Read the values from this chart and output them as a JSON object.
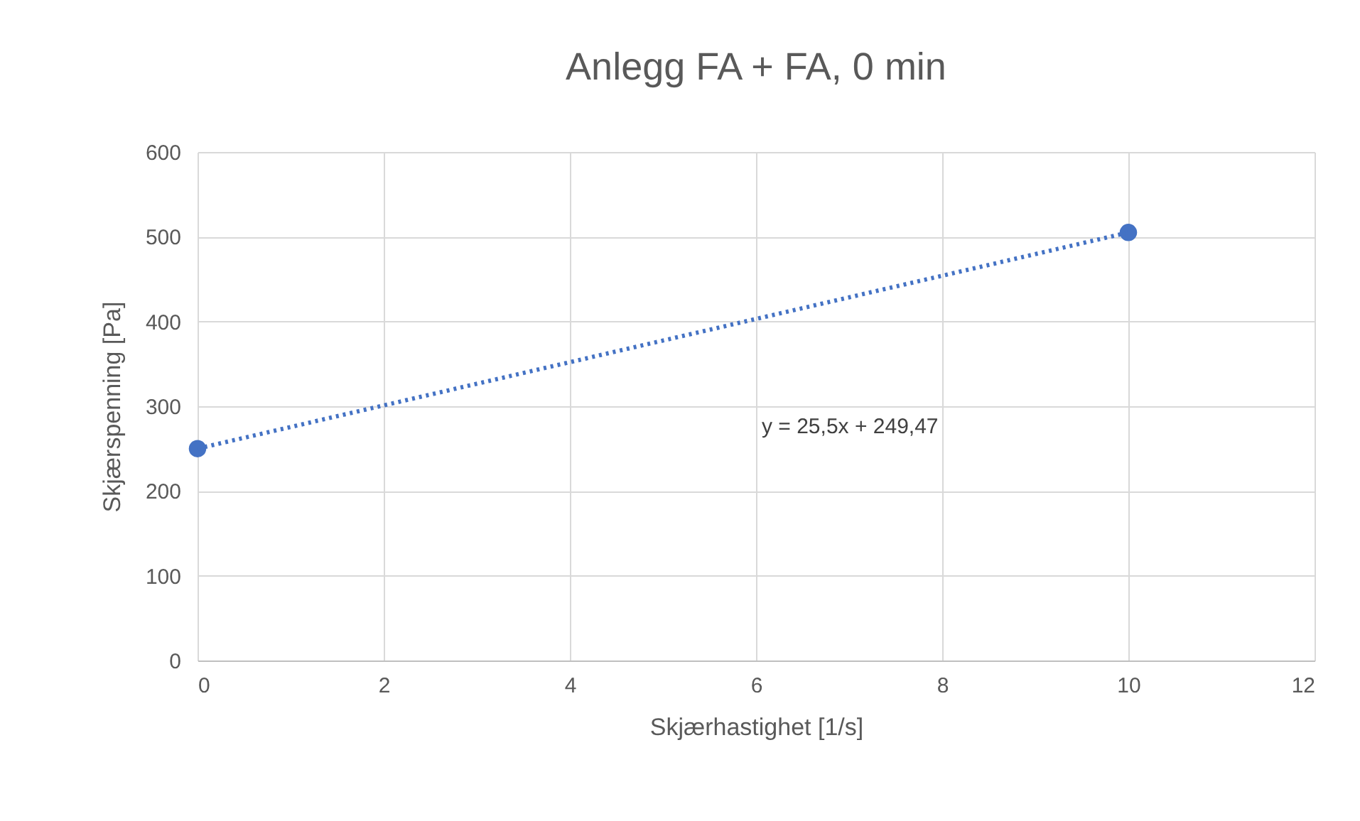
{
  "chart_data": {
    "type": "scatter",
    "title": "Anlegg FA + FA, 0 min",
    "xlabel": "Skjærhastighet [1/s]",
    "ylabel": "Skjærspenning [Pa]",
    "x": [
      0,
      10
    ],
    "series": [
      {
        "color": "#4472c4",
        "values": [
          250,
          505
        ],
        "marker": "circle"
      },
      {
        "type": "line",
        "color": "#4472c4",
        "values": [
          250,
          505
        ],
        "line_style": "dotted",
        "marker": "none"
      }
    ],
    "xlim": [
      0,
      12
    ],
    "xticks": [
      0,
      2,
      4,
      6,
      8,
      10,
      12
    ],
    "ylim": [
      0,
      600
    ],
    "yticks": [
      0,
      100,
      200,
      300,
      400,
      500,
      600
    ],
    "grid": true,
    "annotations": [
      "y = 25,5x + 249,47"
    ]
  }
}
